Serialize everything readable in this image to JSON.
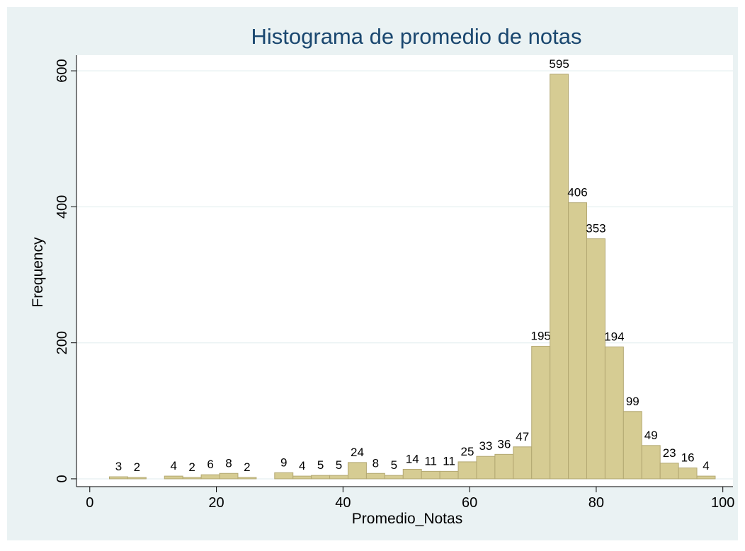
{
  "chart_data": {
    "type": "histogram",
    "title": "Histograma de promedio de notas",
    "x_label": "Promedio_Notas",
    "y_label": "Frequency",
    "bins": [
      3.1,
      6,
      8.9,
      11.8,
      14.7,
      17.6,
      20.5,
      23.4,
      26.3,
      29.2,
      32.1,
      35,
      37.9,
      40.8,
      43.7,
      46.6,
      49.5,
      52.4,
      55.3,
      58.2,
      61.1,
      64,
      66.9,
      69.8,
      72.7,
      75.6,
      78.5,
      81.4,
      84.3,
      87.2,
      90.1,
      93,
      95.9,
      98.8
    ],
    "values": [
      3,
      2,
      0,
      4,
      2,
      6,
      8,
      2,
      0,
      9,
      4,
      5,
      5,
      24,
      8,
      5,
      14,
      11,
      11,
      25,
      33,
      36,
      47,
      195,
      595,
      406,
      353,
      194,
      99,
      49,
      23,
      16,
      4
    ],
    "color": "#d6cc93",
    "edge_color": "#b3a872",
    "xlim": [
      -2.1,
      101.6
    ],
    "xticks": [
      0,
      20,
      40,
      60,
      80,
      100
    ],
    "ylim": [
      -11.5,
      623
    ],
    "yticks": [
      0,
      200,
      400,
      600
    ],
    "grid": true
  }
}
